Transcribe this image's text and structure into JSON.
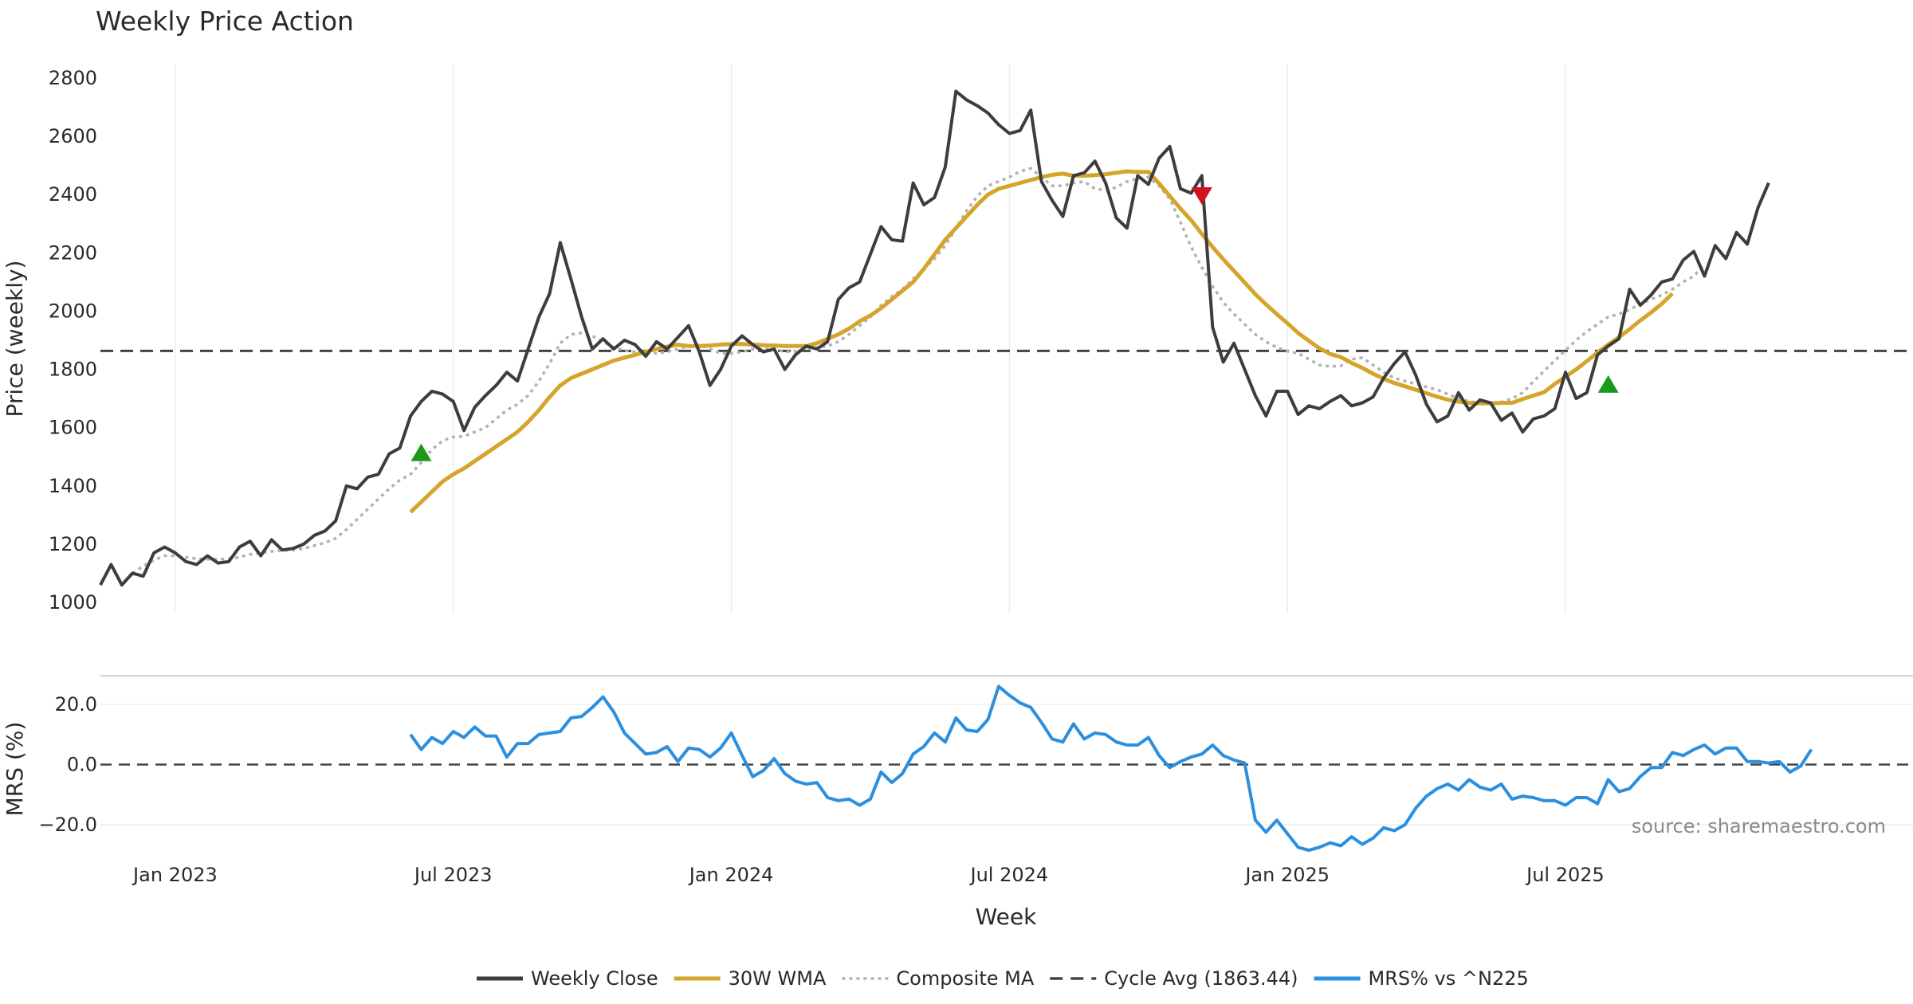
{
  "chart_data": {
    "type": "line",
    "title": "Weekly Price Action",
    "xlabel": "Week",
    "source": "source: sharemaestro.com",
    "x_ticks": [
      {
        "label": "Jan 2023",
        "week": 1
      },
      {
        "label": "Jul 2023",
        "week": 27
      },
      {
        "label": "Jan 2024",
        "week": 53
      },
      {
        "label": "Jul 2024",
        "week": 79
      },
      {
        "label": "Jan 2025",
        "week": 105
      },
      {
        "label": "Jul 2025",
        "week": 131
      }
    ],
    "price_panel": {
      "ylabel": "Price (weekly)",
      "ylim": [
        1000,
        2800
      ],
      "y_ticks": [
        "1000",
        "1200",
        "1400",
        "1600",
        "1800",
        "2000",
        "2200",
        "2400",
        "2600",
        "2800"
      ],
      "cycle_avg": 1863.44,
      "signals": [
        {
          "type": "buy",
          "week": 24,
          "price": 1515
        },
        {
          "type": "sell",
          "week": 97,
          "price": 2395
        },
        {
          "type": "buy",
          "week": 135,
          "price": 1750
        }
      ],
      "series": [
        {
          "name": "Weekly Close",
          "color": "#3d3d3d",
          "start_week": -6,
          "values": [
            1060,
            1130,
            1060,
            1100,
            1090,
            1170,
            1190,
            1170,
            1140,
            1130,
            1160,
            1135,
            1140,
            1190,
            1210,
            1160,
            1215,
            1180,
            1185,
            1200,
            1230,
            1245,
            1280,
            1400,
            1390,
            1430,
            1440,
            1510,
            1530,
            1640,
            1690,
            1725,
            1715,
            1690,
            1590,
            1670,
            1710,
            1745,
            1790,
            1760,
            1870,
            1980,
            2060,
            2235,
            2110,
            1980,
            1870,
            1905,
            1870,
            1900,
            1885,
            1845,
            1895,
            1870,
            1910,
            1950,
            1860,
            1745,
            1800,
            1880,
            1915,
            1885,
            1860,
            1870,
            1800,
            1850,
            1880,
            1870,
            1895,
            2040,
            2080,
            2100,
            2195,
            2290,
            2245,
            2240,
            2440,
            2365,
            2390,
            2495,
            2755,
            2725,
            2705,
            2680,
            2640,
            2610,
            2620,
            2690,
            2445,
            2380,
            2325,
            2465,
            2475,
            2515,
            2440,
            2320,
            2285,
            2465,
            2435,
            2525,
            2565,
            2420,
            2405,
            2465,
            1945,
            1825,
            1890,
            1800,
            1710,
            1640,
            1725,
            1725,
            1645,
            1675,
            1665,
            1690,
            1710,
            1675,
            1685,
            1705,
            1770,
            1820,
            1860,
            1780,
            1680,
            1620,
            1640,
            1720,
            1660,
            1695,
            1685,
            1625,
            1650,
            1585,
            1630,
            1640,
            1665,
            1790,
            1700,
            1720,
            1850,
            1880,
            1905,
            2075,
            2020,
            2055,
            2100,
            2110,
            2175,
            2205,
            2120,
            2225,
            2180,
            2270,
            2230,
            2355,
            2440
          ]
        },
        {
          "name": "30W WMA",
          "color": "#d4a52a",
          "start_week": 23,
          "values": [
            1310,
            1345,
            1380,
            1415,
            1440,
            1460,
            1485,
            1510,
            1535,
            1560,
            1585,
            1620,
            1660,
            1705,
            1745,
            1770,
            1785,
            1800,
            1815,
            1830,
            1840,
            1850,
            1860,
            1870,
            1878,
            1885,
            1880,
            1880,
            1882,
            1885,
            1887,
            1887,
            1885,
            1883,
            1882,
            1880,
            1880,
            1880,
            1890,
            1905,
            1920,
            1940,
            1965,
            1985,
            2010,
            2040,
            2070,
            2100,
            2145,
            2195,
            2245,
            2285,
            2325,
            2365,
            2400,
            2420,
            2430,
            2440,
            2450,
            2460,
            2468,
            2472,
            2465,
            2465,
            2467,
            2470,
            2475,
            2480,
            2478,
            2478,
            2438,
            2395,
            2352,
            2312,
            2265,
            2220,
            2178,
            2138,
            2098,
            2058,
            2023,
            1990,
            1958,
            1925,
            1898,
            1872,
            1853,
            1842,
            1822,
            1805,
            1785,
            1768,
            1753,
            1742,
            1730,
            1718,
            1706,
            1696,
            1689,
            1685,
            1683,
            1683,
            1685,
            1685,
            1698,
            1710,
            1722,
            1750,
            1775,
            1800,
            1828,
            1858,
            1885,
            1910,
            1938,
            1968,
            1995,
            2025,
            2060
          ]
        },
        {
          "name": "Composite MA",
          "color": "#b2b2b2",
          "start_week": -3,
          "values": [
            1100,
            1125,
            1145,
            1160,
            1160,
            1155,
            1150,
            1148,
            1148,
            1150,
            1155,
            1165,
            1170,
            1175,
            1178,
            1180,
            1185,
            1195,
            1205,
            1220,
            1250,
            1285,
            1320,
            1355,
            1390,
            1420,
            1440,
            1480,
            1525,
            1555,
            1568,
            1570,
            1585,
            1600,
            1630,
            1660,
            1680,
            1710,
            1760,
            1820,
            1890,
            1920,
            1925,
            1915,
            1895,
            1875,
            1865,
            1860,
            1855,
            1855,
            1860,
            1870,
            1880,
            1885,
            1870,
            1855,
            1855,
            1860,
            1870,
            1870,
            1870,
            1860,
            1862,
            1870,
            1875,
            1880,
            1895,
            1920,
            1950,
            1980,
            2020,
            2050,
            2075,
            2110,
            2145,
            2180,
            2225,
            2285,
            2345,
            2395,
            2430,
            2445,
            2460,
            2480,
            2490,
            2460,
            2430,
            2430,
            2440,
            2445,
            2420,
            2415,
            2425,
            2445,
            2455,
            2460,
            2430,
            2385,
            2305,
            2220,
            2150,
            2085,
            2030,
            1990,
            1955,
            1920,
            1895,
            1875,
            1862,
            1855,
            1835,
            1815,
            1810,
            1812,
            1835,
            1840,
            1815,
            1790,
            1770,
            1760,
            1750,
            1740,
            1730,
            1715,
            1700,
            1690,
            1685,
            1685,
            1688,
            1700,
            1720,
            1758,
            1795,
            1830,
            1865,
            1900,
            1930,
            1955,
            1980,
            1990,
            2005,
            2025,
            2040,
            2055,
            2075,
            2100,
            2120,
            2160
          ]
        },
        {
          "name": "Cycle Avg (1863.44)",
          "color": "#444444",
          "value": 1863.44
        }
      ]
    },
    "mrs_panel": {
      "ylabel": "MRS (%)",
      "ylim": [
        -30,
        30
      ],
      "y_ticks": [
        {
          "label": "20.0",
          "value": 20
        },
        {
          "label": "0.0",
          "value": 0
        },
        {
          "label": "−20.0",
          "value": -20
        }
      ],
      "series": [
        {
          "name": "MRS% vs ^N225",
          "color": "#2b8fe0",
          "start_week": 23,
          "values": [
            10,
            5,
            9,
            7,
            11,
            9,
            12.5,
            9.5,
            9.5,
            2.5,
            7,
            7,
            10,
            10.5,
            11,
            15.5,
            16,
            19,
            22.5,
            17.5,
            10.5,
            7,
            3.5,
            4,
            6,
            1,
            5.5,
            5,
            2.5,
            5.5,
            10.5,
            3,
            -4,
            -2,
            2,
            -3,
            -5.5,
            -6.5,
            -6,
            -11,
            -12,
            -11.5,
            -13.5,
            -11.5,
            -2.5,
            -6,
            -3,
            3.5,
            6,
            10.5,
            7.5,
            15.5,
            11.5,
            11,
            15,
            26,
            23,
            20.5,
            19,
            14,
            8.5,
            7.5,
            13.5,
            8.5,
            10.5,
            10,
            7.5,
            6.5,
            6.5,
            9,
            3,
            -1,
            1,
            2.5,
            3.5,
            6.5,
            3,
            1.5,
            0.5,
            -18.5,
            -22.5,
            -18.5,
            -23,
            -27.5,
            -28.5,
            -27.5,
            -26,
            -27,
            -24,
            -26.5,
            -24.5,
            -21,
            -22,
            -20,
            -14.5,
            -10.5,
            -8,
            -6.5,
            -8.5,
            -5,
            -7.5,
            -8.5,
            -6.5,
            -11.5,
            -10.5,
            -11,
            -12,
            -12,
            -13.5,
            -11,
            -11,
            -13,
            -5,
            -9,
            -8,
            -4,
            -1,
            -1,
            4,
            3,
            5,
            6.5,
            3.5,
            5.5,
            5.5,
            1,
            1,
            0.5,
            1,
            -2.5,
            -0.5,
            5
          ]
        }
      ]
    },
    "legend": [
      {
        "label": "Weekly Close",
        "style": "solid",
        "color": "#3d3d3d"
      },
      {
        "label": "30W WMA",
        "style": "solid",
        "color": "#d4a52a"
      },
      {
        "label": "Composite MA",
        "style": "dotted",
        "color": "#b2b2b2"
      },
      {
        "label": "Cycle Avg (1863.44)",
        "style": "dashed",
        "color": "#444444"
      },
      {
        "label": "MRS% vs ^N225",
        "style": "solid",
        "color": "#2b8fe0"
      }
    ]
  }
}
